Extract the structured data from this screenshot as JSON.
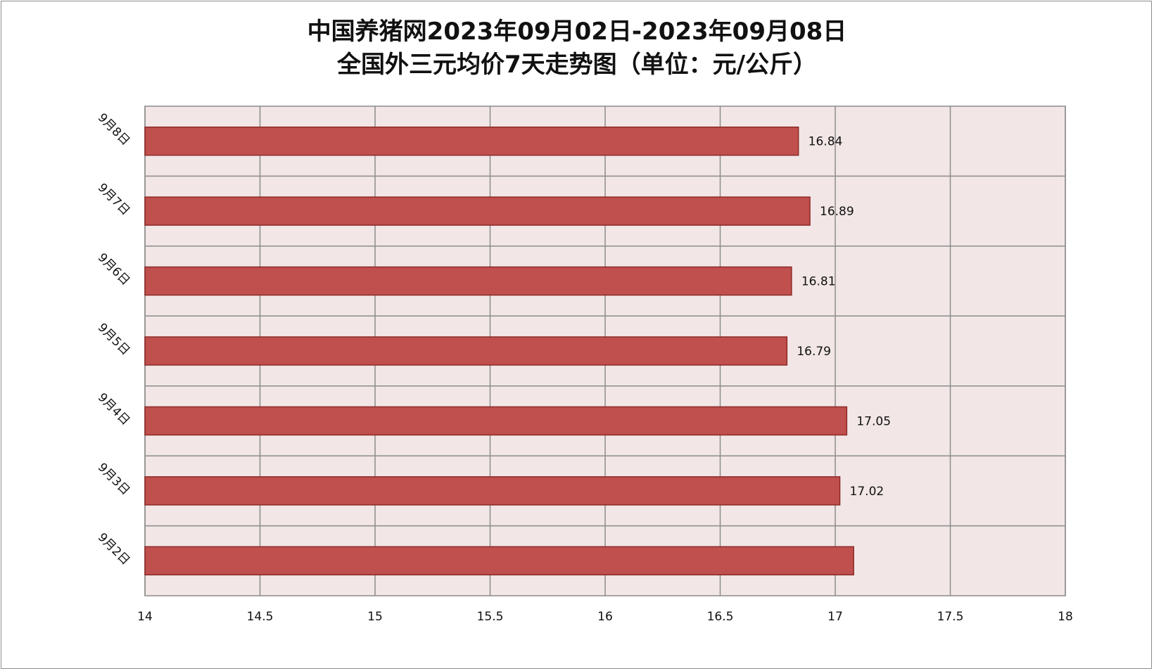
{
  "chart_data": {
    "type": "bar",
    "orientation": "horizontal",
    "title": [
      "中国养猪网2023年09月02日-2023年09月08日",
      "全国外三元均价7天走势图（单位：元/公斤）"
    ],
    "categories": [
      "9月2日",
      "9月3日",
      "9月4日",
      "9月5日",
      "9月6日",
      "9月7日",
      "9月8日"
    ],
    "series": [
      {
        "values": [
          17.08,
          17.02,
          17.05,
          16.79,
          16.81,
          16.89,
          16.84
        ]
      }
    ],
    "data_labels": [
      "",
      "17.02",
      "17.05",
      "16.79",
      "16.81",
      "16.89",
      "16.84"
    ],
    "xlim": [
      14,
      18
    ],
    "x_ticks": [
      "14",
      "14.5",
      "15",
      "15.5",
      "16",
      "16.5",
      "17",
      "17.5",
      "18"
    ],
    "grid": true,
    "colors": {
      "bar_fill": "#c0504d",
      "bar_stroke": "#8c2a28",
      "plot_bg": "#f2e6e6",
      "grid": "#8c8c8c"
    }
  }
}
